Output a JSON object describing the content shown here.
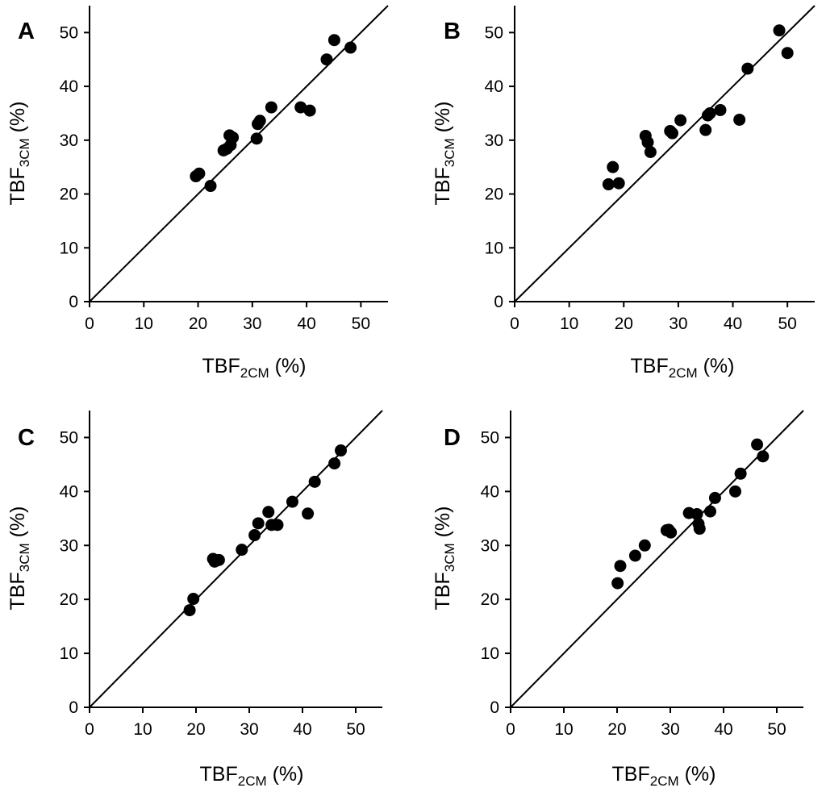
{
  "chart_data": [
    {
      "type": "scatter",
      "panel": "A",
      "xlabel": {
        "main": "TBF",
        "sub": "2CM",
        "unit": " (%)"
      },
      "ylabel": {
        "main": "TBF",
        "sub": "3CM",
        "unit": " (%)"
      },
      "xlim": [
        0,
        55
      ],
      "ylim": [
        0,
        55
      ],
      "xticks": [
        "0",
        "10",
        "20",
        "30",
        "40",
        "50"
      ],
      "yticks": [
        "0",
        "10",
        "20",
        "30",
        "40",
        "50"
      ],
      "identity_line": true,
      "x": [
        19.6,
        20.2,
        22.3,
        24.7,
        25.3,
        25.8,
        26.0,
        26.4,
        30.8,
        31.0,
        31.4,
        33.5,
        38.9,
        40.6,
        43.7,
        45.1,
        48.1
      ],
      "y": [
        23.3,
        23.8,
        21.5,
        28.1,
        28.4,
        30.9,
        29.1,
        30.5,
        30.3,
        33.0,
        33.6,
        36.1,
        36.1,
        35.5,
        45.0,
        48.6,
        47.2
      ]
    },
    {
      "type": "scatter",
      "panel": "B",
      "xlabel": {
        "main": "TBF",
        "sub": "2CM",
        "unit": " (%)"
      },
      "ylabel": {
        "main": "TBF",
        "sub": "3CM",
        "unit": " (%)"
      },
      "xlim": [
        0,
        55
      ],
      "ylim": [
        0,
        55
      ],
      "xticks": [
        "0",
        "10",
        "20",
        "30",
        "40",
        "50"
      ],
      "yticks": [
        "0",
        "10",
        "20",
        "30",
        "40",
        "50"
      ],
      "identity_line": true,
      "x": [
        17.2,
        18.0,
        19.1,
        24.0,
        24.4,
        24.9,
        28.5,
        28.9,
        30.4,
        35.0,
        35.4,
        35.8,
        37.7,
        41.2,
        42.7,
        48.5,
        50.0
      ],
      "y": [
        21.8,
        25.0,
        22.0,
        30.8,
        29.6,
        27.8,
        31.7,
        31.3,
        33.7,
        31.9,
        34.6,
        35.0,
        35.6,
        33.8,
        43.3,
        50.4,
        46.2
      ]
    },
    {
      "type": "scatter",
      "panel": "C",
      "xlabel": {
        "main": "TBF",
        "sub": "2CM",
        "unit": " (%)"
      },
      "ylabel": {
        "main": "TBF",
        "sub": "3CM",
        "unit": " (%)"
      },
      "xlim": [
        0,
        55
      ],
      "ylim": [
        0,
        55
      ],
      "xticks": [
        "0",
        "10",
        "20",
        "30",
        "40",
        "50"
      ],
      "yticks": [
        "0",
        "10",
        "20",
        "30",
        "40",
        "50"
      ],
      "identity_line": true,
      "x": [
        18.8,
        19.5,
        23.2,
        23.5,
        24.3,
        28.6,
        31.0,
        31.7,
        33.6,
        34.2,
        35.3,
        38.1,
        41.0,
        42.3,
        46.0,
        47.2
      ],
      "y": [
        18.0,
        20.1,
        27.5,
        27.0,
        27.3,
        29.2,
        31.9,
        34.1,
        36.2,
        33.8,
        33.8,
        38.1,
        35.9,
        41.8,
        45.2,
        47.6
      ]
    },
    {
      "type": "scatter",
      "panel": "D",
      "xlabel": {
        "main": "TBF",
        "sub": "2CM",
        "unit": " (%)"
      },
      "ylabel": {
        "main": "TBF",
        "sub": "3CM",
        "unit": " (%)"
      },
      "xlim": [
        0,
        55
      ],
      "ylim": [
        0,
        55
      ],
      "xticks": [
        "0",
        "10",
        "20",
        "30",
        "40",
        "50"
      ],
      "yticks": [
        "0",
        "10",
        "20",
        "30",
        "40",
        "50"
      ],
      "identity_line": true,
      "x": [
        20.1,
        20.6,
        23.4,
        25.2,
        29.3,
        29.7,
        30.1,
        33.5,
        35.0,
        35.3,
        35.5,
        37.5,
        38.4,
        42.2,
        43.2,
        46.3,
        47.4
      ],
      "y": [
        23.0,
        26.2,
        28.1,
        30.0,
        32.8,
        32.9,
        32.4,
        36.0,
        35.8,
        34.0,
        33.1,
        36.3,
        38.8,
        40.0,
        43.3,
        48.7,
        46.5
      ]
    }
  ]
}
